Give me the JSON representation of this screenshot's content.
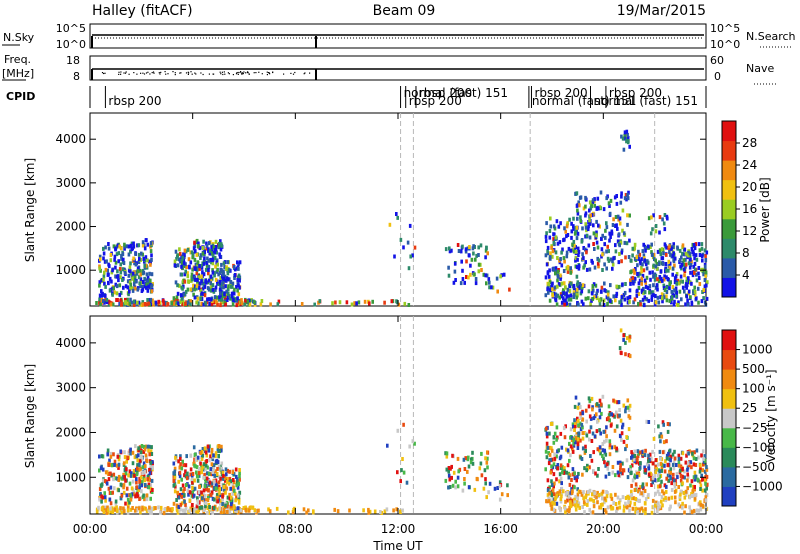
{
  "header": {
    "station": "Halley (fitACF)",
    "beam": "Beam 09",
    "date": "19/Mar/2015"
  },
  "colors": {
    "power_scale": [
      "#1212e6",
      "#2a5aa8",
      "#2d8a6a",
      "#3a9a3a",
      "#9acc22",
      "#f0c010",
      "#f08a10",
      "#e83a10",
      "#e01010"
    ],
    "velocity_scale": [
      "#2040c0",
      "#2a6aa0",
      "#2a8a5a",
      "#48b848",
      "#c8c8c8",
      "#f0c010",
      "#f08a10",
      "#e84a10",
      "#e01010"
    ],
    "ground": "#b0b0b0"
  },
  "chart_data": [
    {
      "type": "line",
      "panel": "nsky-nsearch",
      "left_label": "N.Sky",
      "right_label": "N.Search",
      "left_ticks": [
        "10^5",
        "10^0"
      ],
      "right_ticks": [
        "10^5",
        "10^0"
      ]
    },
    {
      "type": "line",
      "panel": "freq-nave",
      "left_label_top": "Freq.",
      "left_label_unit": "[MHz]",
      "right_label": "Nave",
      "left_ticks": [
        "18",
        "8"
      ],
      "right_ticks": [
        "60",
        "0"
      ],
      "ylim": [
        8,
        18
      ]
    },
    {
      "type": "table",
      "panel": "cpid",
      "label": "CPID",
      "segments": [
        {
          "start": 0.6,
          "label": "rbsp 200"
        },
        {
          "start": 12.1,
          "label": "normal (fast) 151"
        },
        {
          "start": 12.3,
          "label": "rbsp 200"
        },
        {
          "start": 12.7,
          "label": "rbsp 200"
        },
        {
          "start": 17.1,
          "label": "normal (fast) 151"
        },
        {
          "start": 17.2,
          "label": "rbsp 200"
        },
        {
          "start": 19.5,
          "label": "normal (fast) 151"
        },
        {
          "start": 20.1,
          "label": "rbsp 200"
        }
      ]
    },
    {
      "type": "heatmap",
      "panel": "power",
      "ylabel": "Slant Range [km]",
      "xlim": [
        0,
        24
      ],
      "ylim": [
        180,
        4600
      ],
      "yticks": [
        1000,
        2000,
        3000,
        4000
      ],
      "colorbar_label": "Power [dB]",
      "colorbar_ticks": [
        "28",
        "24",
        "20",
        "16",
        "12",
        "8",
        "4"
      ],
      "colorbar_range": [
        0,
        32
      ]
    },
    {
      "type": "heatmap",
      "panel": "velocity",
      "ylabel": "Slant Range [km]",
      "xlabel": "Time UT",
      "xlim": [
        0,
        24
      ],
      "ylim": [
        180,
        4600
      ],
      "yticks": [
        1000,
        2000,
        3000,
        4000
      ],
      "xtick_labels": [
        "00:00",
        "04:00",
        "08:00",
        "12:00",
        "16:00",
        "20:00",
        "00:00"
      ],
      "xtick_hours": [
        0,
        4,
        8,
        12,
        16,
        20,
        24
      ],
      "colorbar_label": "Velocity [m s⁻¹]",
      "colorbar_ticks": [
        "1000",
        "500",
        "100",
        "25",
        "−25",
        "−100",
        "−500",
        "−1000"
      ]
    }
  ],
  "scatter_regions": [
    {
      "t0": 0.2,
      "t1": 6.5,
      "r0": 200,
      "r1": 330,
      "n": 180
    },
    {
      "t0": 6.5,
      "t1": 12.5,
      "r0": 200,
      "r1": 300,
      "n": 30
    },
    {
      "t0": 0.3,
      "t1": 1.5,
      "r0": 400,
      "r1": 1600,
      "n": 120
    },
    {
      "t0": 1.5,
      "t1": 2.4,
      "r0": 500,
      "r1": 1700,
      "n": 140
    },
    {
      "t0": 3.2,
      "t1": 4.0,
      "r0": 300,
      "r1": 1500,
      "n": 90
    },
    {
      "t0": 4.0,
      "t1": 5.1,
      "r0": 300,
      "r1": 1700,
      "n": 220
    },
    {
      "t0": 5.1,
      "t1": 5.8,
      "r0": 300,
      "r1": 1200,
      "n": 100
    },
    {
      "t0": 11.5,
      "t1": 12.7,
      "r0": 800,
      "r1": 2300,
      "n": 12
    },
    {
      "t0": 13.8,
      "t1": 15.5,
      "r0": 700,
      "r1": 1600,
      "n": 60
    },
    {
      "t0": 15.3,
      "t1": 16.3,
      "r0": 500,
      "r1": 900,
      "n": 12
    },
    {
      "t0": 17.7,
      "t1": 19.0,
      "r0": 400,
      "r1": 2200,
      "n": 160
    },
    {
      "t0": 18.8,
      "t1": 21.0,
      "r0": 1000,
      "r1": 2800,
      "n": 200
    },
    {
      "t0": 20.6,
      "t1": 21.0,
      "r0": 3700,
      "r1": 4300,
      "n": 15
    },
    {
      "t0": 21.0,
      "t1": 24.0,
      "r0": 700,
      "r1": 1600,
      "n": 260
    },
    {
      "t0": 17.8,
      "t1": 24.0,
      "r0": 200,
      "r1": 700,
      "n": 260
    },
    {
      "t0": 21.5,
      "t1": 22.6,
      "r0": 1700,
      "r1": 2300,
      "n": 15
    }
  ],
  "dashed_times": [
    12.1,
    12.6,
    17.15,
    22.0
  ]
}
